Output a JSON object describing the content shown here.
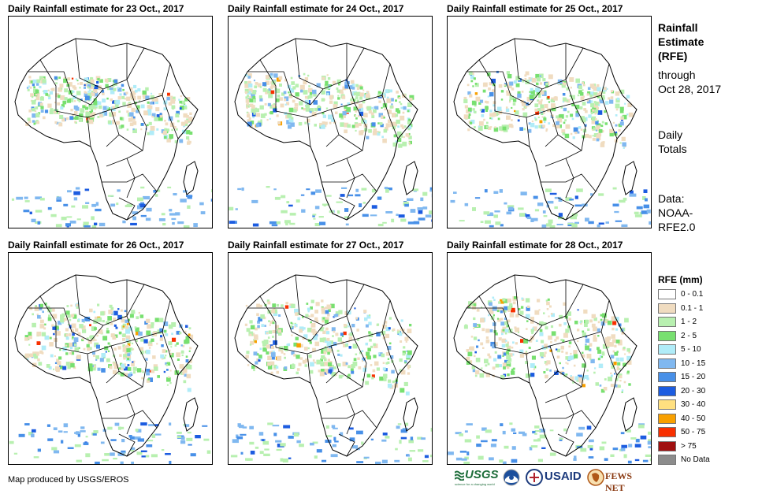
{
  "panels": [
    {
      "title": "Daily Rainfall estimate for 23 Oct., 2017"
    },
    {
      "title": "Daily Rainfall estimate for 24 Oct., 2017"
    },
    {
      "title": "Daily Rainfall estimate for 25 Oct., 2017"
    },
    {
      "title": "Daily Rainfall estimate for 26 Oct., 2017"
    },
    {
      "title": "Daily Rainfall estimate for 27 Oct., 2017"
    },
    {
      "title": "Daily Rainfall estimate for 28 Oct., 2017"
    }
  ],
  "side": {
    "heading_1": "Rainfall",
    "heading_2": "Estimate",
    "heading_3": "(RFE)",
    "through_1": "through",
    "through_2": "Oct 28, 2017",
    "daily_1": "Daily",
    "daily_2": "Totals",
    "data_1": "Data:",
    "data_2": "NOAA-",
    "data_3": "RFE2.0"
  },
  "legend": {
    "title": "RFE (mm)",
    "items": [
      {
        "label": "0 - 0.1",
        "color": "#ffffff"
      },
      {
        "label": "0.1 - 1",
        "color": "#f0dcc0"
      },
      {
        "label": "1 - 2",
        "color": "#b8f0b0"
      },
      {
        "label": "2 - 5",
        "color": "#78e070"
      },
      {
        "label": "5 - 10",
        "color": "#b0ecf8"
      },
      {
        "label": "10 - 15",
        "color": "#80b8f0"
      },
      {
        "label": "15 - 20",
        "color": "#4890e8"
      },
      {
        "label": "20 - 30",
        "color": "#1c5ce0"
      },
      {
        "label": "30 - 40",
        "color": "#ffe080"
      },
      {
        "label": "40 - 50",
        "color": "#f8a000"
      },
      {
        "label": "50 - 75",
        "color": "#f83000"
      },
      {
        "label": "> 75",
        "color": "#a01010"
      },
      {
        "label": "No Data",
        "color": "#8c8c8c"
      }
    ]
  },
  "credit": "Map produced by USGS/EROS",
  "logos": {
    "usgs": "USGS",
    "usgs_tagline": "science for a changing world",
    "usaid": "USAID",
    "fews": "FEWS NET"
  }
}
